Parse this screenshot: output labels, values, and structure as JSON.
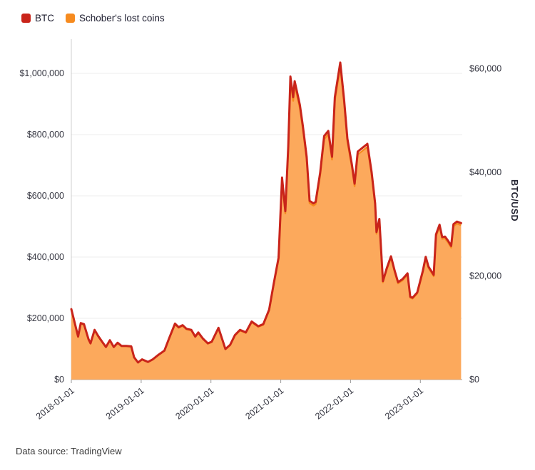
{
  "legend": {
    "items": [
      {
        "label": "BTC"
      },
      {
        "label": "Schober's lost coins"
      }
    ]
  },
  "footer": {
    "text": "Data source: TradingView"
  },
  "chart_data": {
    "type": "area",
    "title": "",
    "legend_position": "top-left",
    "grid": "horizontal-light",
    "x_axis": {
      "tick_labels": [
        "2018-01-01",
        "2019-01-01",
        "2020-01-01",
        "2021-01-01",
        "2022-01-01",
        "2023-01-01"
      ],
      "range": [
        "2018-01-01",
        "2023-08-01"
      ],
      "label_rotation_deg": -38
    },
    "left_axis": {
      "series": "Schober's lost coins",
      "ticks": [
        0,
        200000,
        400000,
        600000,
        800000,
        1000000
      ],
      "tick_labels": [
        "$0",
        "$200,000",
        "$400,000",
        "$600,000",
        "$800,000",
        "$1,000,000"
      ],
      "range": [
        0,
        1000000
      ]
    },
    "right_axis": {
      "series": "BTC",
      "label": "BTC/USD",
      "ticks": [
        0,
        20000,
        40000,
        60000
      ],
      "tick_labels": [
        "$0",
        "$20,000",
        "$40,000",
        "$60,000"
      ],
      "range": [
        0,
        60000
      ]
    },
    "series": [
      {
        "name": "BTC",
        "axis": "right",
        "style": "line",
        "color": "#c9241a"
      },
      {
        "name": "Schober's lost coins",
        "axis": "left",
        "style": "area",
        "color": "#f68b1f",
        "fill": "#fca95c"
      }
    ],
    "points_format": [
      "date",
      "btc_usd",
      "schober_lost_coins_usd"
    ],
    "points": [
      [
        "2018-01-01",
        13600,
        227100
      ],
      [
        "2018-01-17",
        11200,
        187000
      ],
      [
        "2018-02-06",
        8300,
        138600
      ],
      [
        "2018-02-20",
        10900,
        182000
      ],
      [
        "2018-03-06",
        10700,
        178700
      ],
      [
        "2018-03-30",
        7800,
        130300
      ],
      [
        "2018-04-10",
        7000,
        116900
      ],
      [
        "2018-05-01",
        9600,
        160300
      ],
      [
        "2018-05-20",
        8400,
        140300
      ],
      [
        "2018-06-10",
        7300,
        121900
      ],
      [
        "2018-06-30",
        6300,
        105200
      ],
      [
        "2018-07-20",
        7600,
        126900
      ],
      [
        "2018-08-10",
        6300,
        105200
      ],
      [
        "2018-08-30",
        7100,
        118600
      ],
      [
        "2018-09-20",
        6500,
        108600
      ],
      [
        "2018-10-15",
        6500,
        108600
      ],
      [
        "2018-11-10",
        6400,
        106900
      ],
      [
        "2018-11-25",
        4300,
        71800
      ],
      [
        "2018-12-15",
        3300,
        55100
      ],
      [
        "2019-01-06",
        3900,
        65100
      ],
      [
        "2019-02-06",
        3400,
        56800
      ],
      [
        "2019-03-01",
        3900,
        65100
      ],
      [
        "2019-04-01",
        4800,
        80200
      ],
      [
        "2019-05-01",
        5600,
        93500
      ],
      [
        "2019-05-25",
        7900,
        131900
      ],
      [
        "2019-06-26",
        10800,
        180400
      ],
      [
        "2019-07-15",
        10100,
        168700
      ],
      [
        "2019-08-05",
        10500,
        175400
      ],
      [
        "2019-08-25",
        9800,
        163700
      ],
      [
        "2019-09-20",
        9600,
        160300
      ],
      [
        "2019-10-10",
        8300,
        138600
      ],
      [
        "2019-10-26",
        9100,
        152000
      ],
      [
        "2019-11-20",
        7900,
        131900
      ],
      [
        "2019-12-15",
        7000,
        116900
      ],
      [
        "2020-01-05",
        7300,
        121900
      ],
      [
        "2020-02-10",
        10000,
        167000
      ],
      [
        "2020-03-16",
        5900,
        98500
      ],
      [
        "2020-04-10",
        6700,
        111900
      ],
      [
        "2020-05-05",
        8600,
        143600
      ],
      [
        "2020-06-01",
        9600,
        160300
      ],
      [
        "2020-07-01",
        9100,
        152000
      ],
      [
        "2020-08-01",
        11200,
        187000
      ],
      [
        "2020-09-05",
        10300,
        172000
      ],
      [
        "2020-10-01",
        10700,
        178700
      ],
      [
        "2020-11-01",
        13500,
        225500
      ],
      [
        "2020-11-25",
        18500,
        309000
      ],
      [
        "2020-12-20",
        23500,
        392500
      ],
      [
        "2021-01-08",
        39000,
        651300
      ],
      [
        "2021-01-25",
        32500,
        542800
      ],
      [
        "2021-02-10",
        45000,
        751500
      ],
      [
        "2021-02-21",
        58500,
        977000
      ],
      [
        "2021-03-05",
        54500,
        910200
      ],
      [
        "2021-03-13",
        57600,
        961900
      ],
      [
        "2021-04-10",
        53000,
        885100
      ],
      [
        "2021-04-25",
        49000,
        818300
      ],
      [
        "2021-05-15",
        43000,
        718100
      ],
      [
        "2021-05-30",
        34500,
        576200
      ],
      [
        "2021-06-20",
        34000,
        567800
      ],
      [
        "2021-07-01",
        34300,
        572800
      ],
      [
        "2021-07-25",
        40000,
        668000
      ],
      [
        "2021-08-15",
        47000,
        784900
      ],
      [
        "2021-09-06",
        48000,
        801600
      ],
      [
        "2021-09-26",
        43000,
        718100
      ],
      [
        "2021-10-10",
        54500,
        910200
      ],
      [
        "2021-11-08",
        61200,
        1022000
      ],
      [
        "2021-11-28",
        54000,
        901800
      ],
      [
        "2021-12-15",
        46500,
        776600
      ],
      [
        "2022-01-08",
        41500,
        693100
      ],
      [
        "2022-01-22",
        37800,
        631300
      ],
      [
        "2022-02-08",
        44000,
        734800
      ],
      [
        "2022-03-28",
        45500,
        759900
      ],
      [
        "2022-04-20",
        40000,
        668000
      ],
      [
        "2022-05-08",
        34000,
        567800
      ],
      [
        "2022-05-15",
        28500,
        476000
      ],
      [
        "2022-05-30",
        31000,
        517700
      ],
      [
        "2022-06-18",
        19000,
        317300
      ],
      [
        "2022-07-08",
        21500,
        359100
      ],
      [
        "2022-07-30",
        23800,
        397500
      ],
      [
        "2022-08-19",
        21000,
        350700
      ],
      [
        "2022-09-06",
        18800,
        314000
      ],
      [
        "2022-09-30",
        19400,
        324000
      ],
      [
        "2022-10-25",
        20500,
        342400
      ],
      [
        "2022-11-09",
        16000,
        267200
      ],
      [
        "2022-11-21",
        15800,
        263900
      ],
      [
        "2022-12-15",
        16800,
        280600
      ],
      [
        "2023-01-14",
        21000,
        350700
      ],
      [
        "2023-01-29",
        23700,
        395800
      ],
      [
        "2023-02-13",
        21800,
        364100
      ],
      [
        "2023-03-10",
        20200,
        337300
      ],
      [
        "2023-03-22",
        28000,
        467600
      ],
      [
        "2023-04-10",
        29900,
        499300
      ],
      [
        "2023-04-24",
        27500,
        459300
      ],
      [
        "2023-05-08",
        27600,
        460900
      ],
      [
        "2023-05-24",
        26800,
        447600
      ],
      [
        "2023-06-10",
        25800,
        430900
      ],
      [
        "2023-06-22",
        30000,
        501000
      ],
      [
        "2023-07-10",
        30500,
        509400
      ],
      [
        "2023-08-01",
        30200,
        504300
      ]
    ]
  }
}
